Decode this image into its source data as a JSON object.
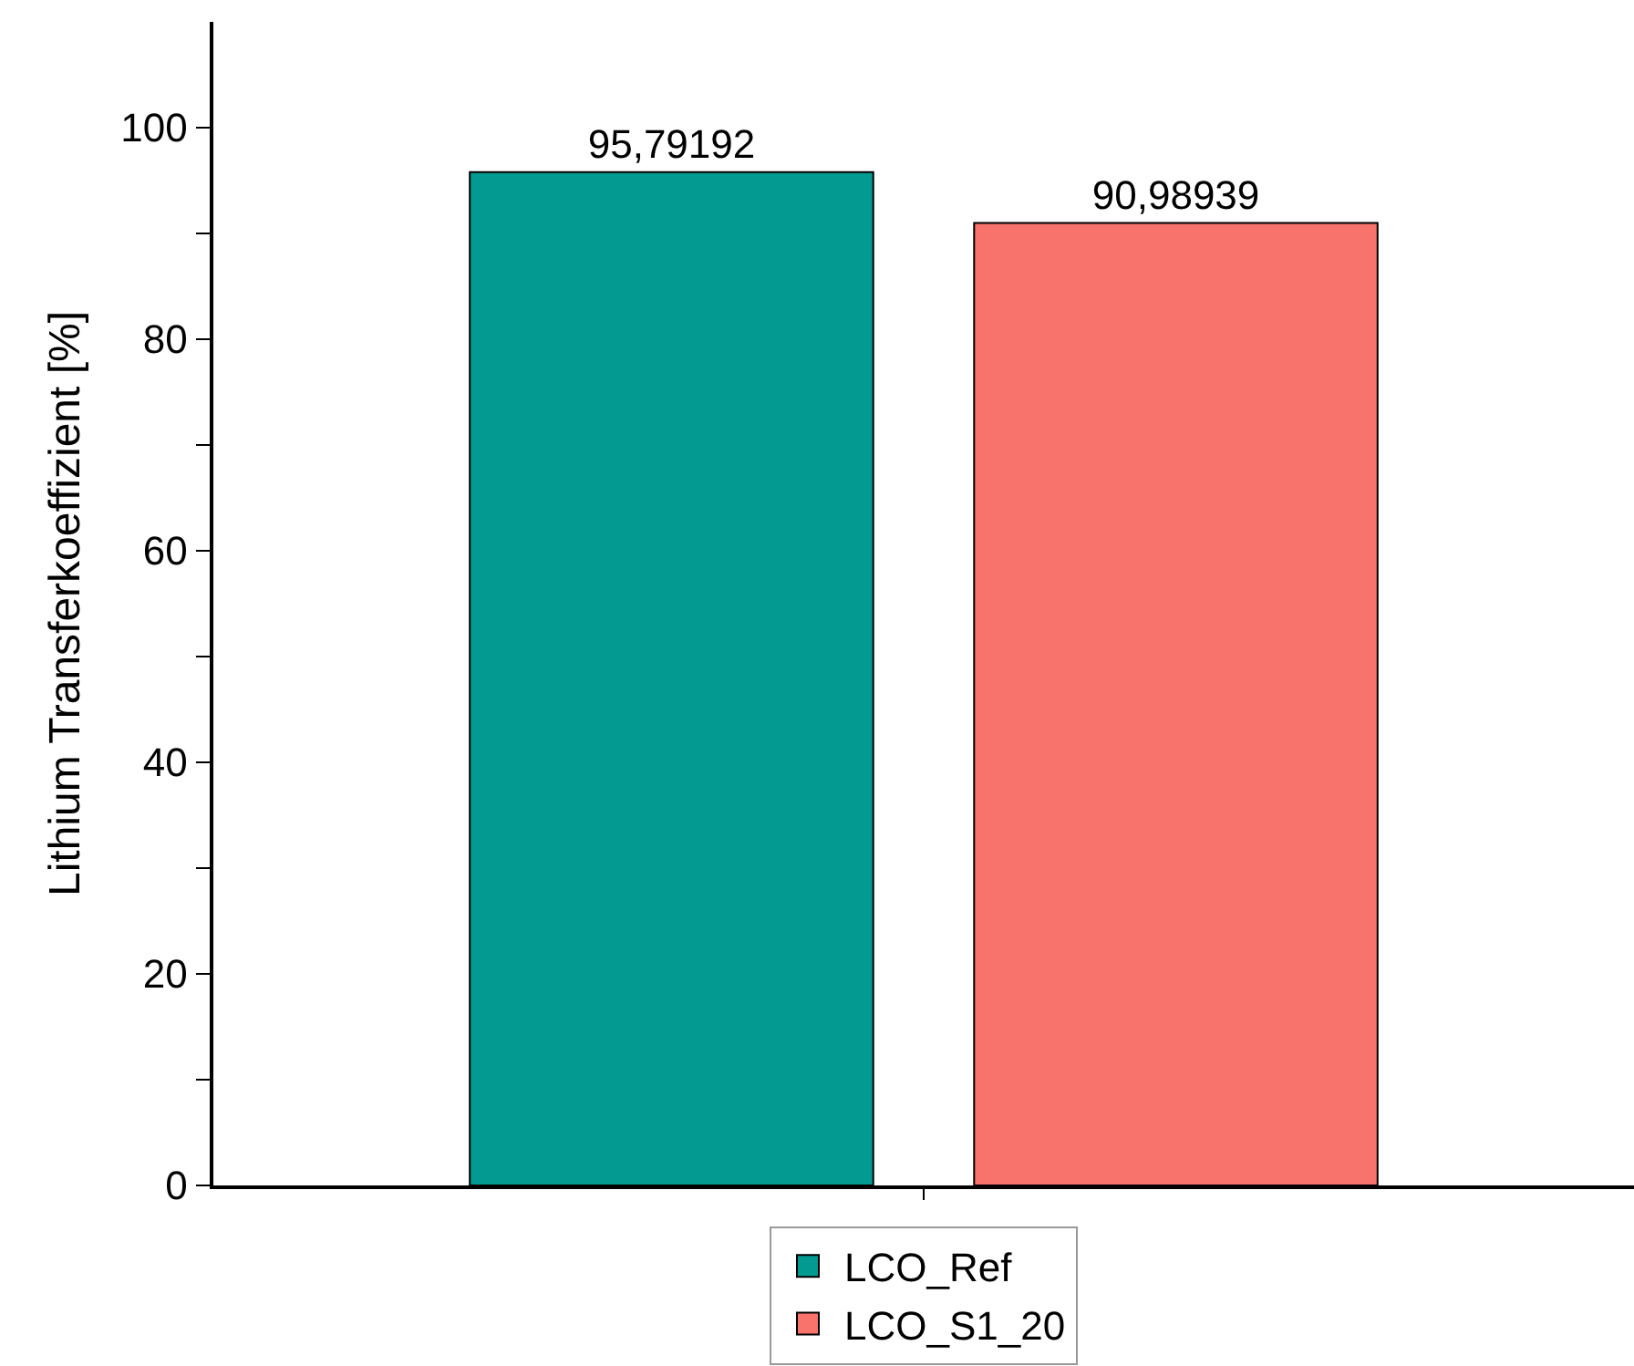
{
  "chart_data": {
    "type": "bar",
    "ylabel": "Lithium Transferkoeffizient [%]",
    "categories": [
      null
    ],
    "series": [
      {
        "name": "LCO_Ref",
        "color": "#029a91",
        "values": [
          95.79192
        ],
        "value_labels": [
          "95,79192"
        ]
      },
      {
        "name": "LCO_S1_20",
        "color": "#f8736b",
        "values": [
          90.98939
        ],
        "value_labels": [
          "90,98939"
        ]
      }
    ],
    "ylim": [
      0,
      110
    ],
    "yticks": [
      0,
      {
        "value": 10,
        "label": null
      },
      20,
      {
        "value": 30,
        "label": null
      },
      40,
      {
        "value": 50,
        "label": null
      },
      60,
      {
        "value": 70,
        "label": null
      },
      80,
      {
        "value": 90,
        "label": null
      },
      100
    ],
    "legend": "bottom"
  }
}
